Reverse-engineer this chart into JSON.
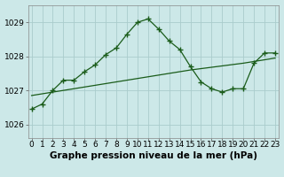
{
  "title": "Graphe pression niveau de la mer (hPa)",
  "bg_color": "#cce8e8",
  "grid_color": "#aacccc",
  "line_color": "#1a5c1a",
  "x_ticks": [
    0,
    1,
    2,
    3,
    4,
    5,
    6,
    7,
    8,
    9,
    10,
    11,
    12,
    13,
    14,
    15,
    16,
    17,
    18,
    19,
    20,
    21,
    22,
    23
  ],
  "y_ticks": [
    1026,
    1027,
    1028,
    1029
  ],
  "ylim": [
    1025.6,
    1029.5
  ],
  "xlim": [
    -0.3,
    23.3
  ],
  "series1_x": [
    0,
    1,
    2,
    3,
    4,
    5,
    6,
    7,
    8,
    9,
    10,
    11,
    12,
    13,
    14,
    15,
    16,
    17,
    18,
    19,
    20,
    21,
    22,
    23
  ],
  "series1_y": [
    1026.45,
    1026.6,
    1027.0,
    1027.3,
    1027.3,
    1027.55,
    1027.75,
    1028.05,
    1028.25,
    1028.65,
    1029.0,
    1029.1,
    1028.8,
    1028.45,
    1028.2,
    1027.7,
    1027.25,
    1027.05,
    1026.95,
    1027.05,
    1027.05,
    1027.8,
    1028.1,
    1028.1
  ],
  "series2_x": [
    0,
    5,
    10,
    15,
    20,
    23
  ],
  "series2_y": [
    1026.85,
    1027.1,
    1027.35,
    1027.6,
    1027.8,
    1027.95
  ],
  "tick_fontsize": 6.5,
  "title_fontsize": 7.5,
  "figwidth": 3.2,
  "figheight": 2.0,
  "dpi": 100
}
